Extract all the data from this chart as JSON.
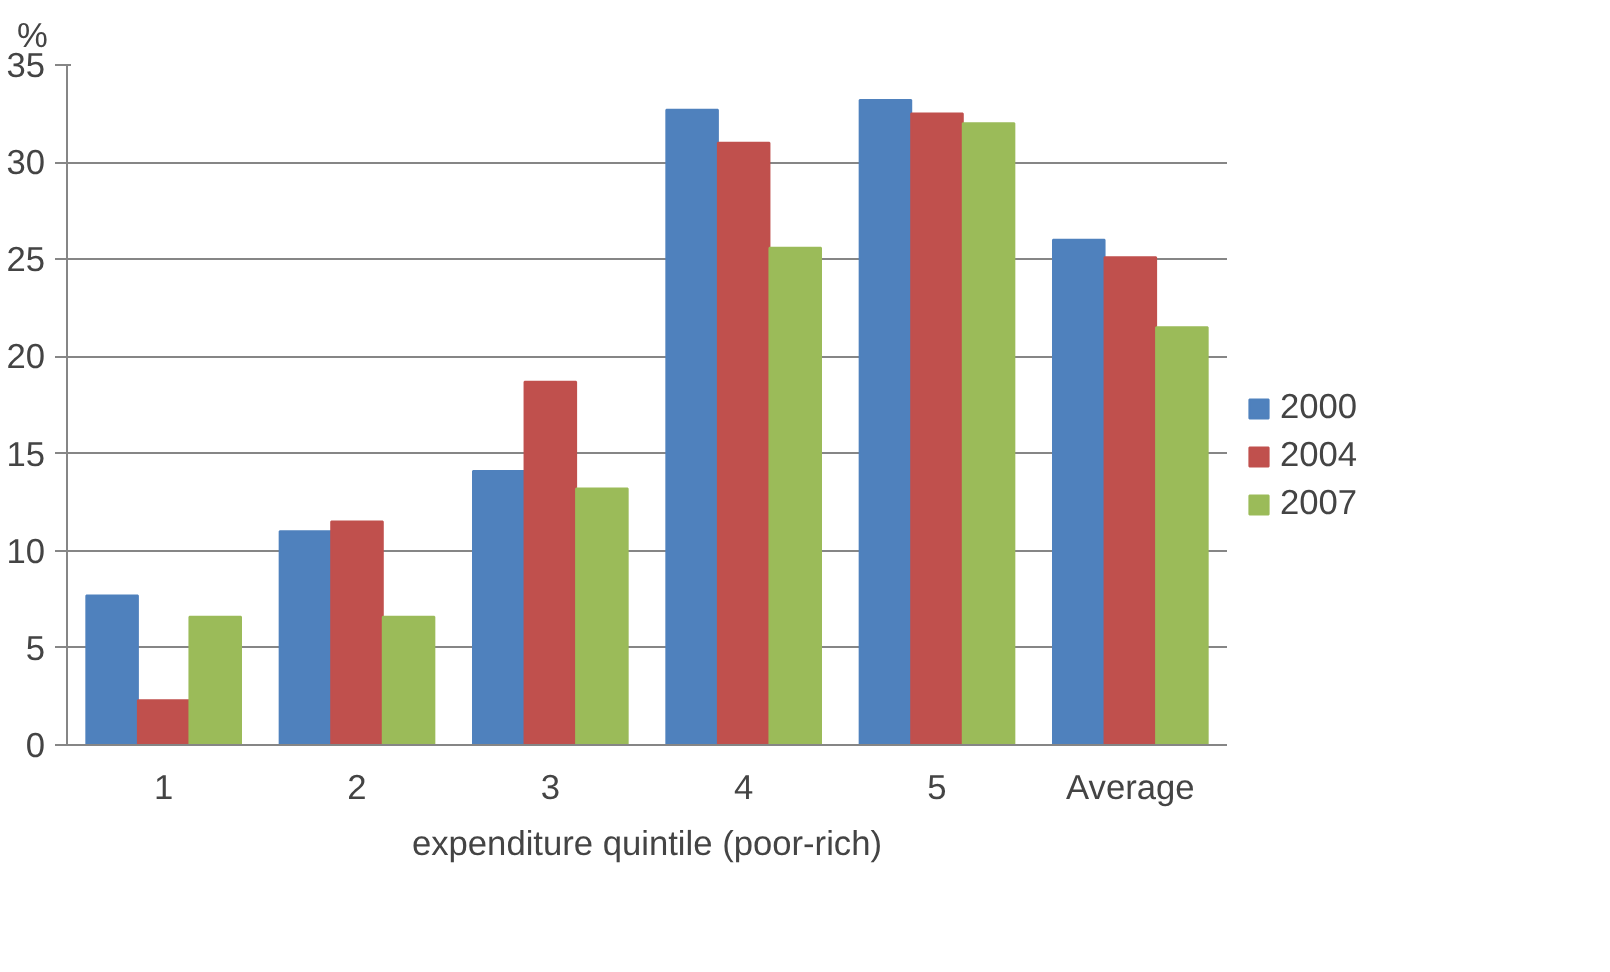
{
  "chart_data": {
    "type": "bar",
    "xlabel": "expenditure quintile (poor-rich)",
    "ylabel": "%",
    "categories": [
      "1",
      "2",
      "3",
      "4",
      "5",
      "Average"
    ],
    "series": [
      {
        "name": "2000",
        "color": "#4f81bd",
        "values": [
          7.7,
          11.0,
          14.1,
          32.7,
          33.2,
          26.0
        ]
      },
      {
        "name": "2004",
        "color": "#c0504d",
        "values": [
          2.3,
          11.5,
          18.7,
          31.0,
          32.5,
          25.1
        ]
      },
      {
        "name": "2007",
        "color": "#9bbb59",
        "values": [
          6.6,
          6.6,
          13.2,
          25.6,
          32.0,
          21.5
        ]
      }
    ],
    "ylim": [
      0,
      35
    ],
    "yticks": [
      0,
      5,
      10,
      15,
      20,
      25,
      30,
      35
    ],
    "grid": "y",
    "legend": "right"
  }
}
